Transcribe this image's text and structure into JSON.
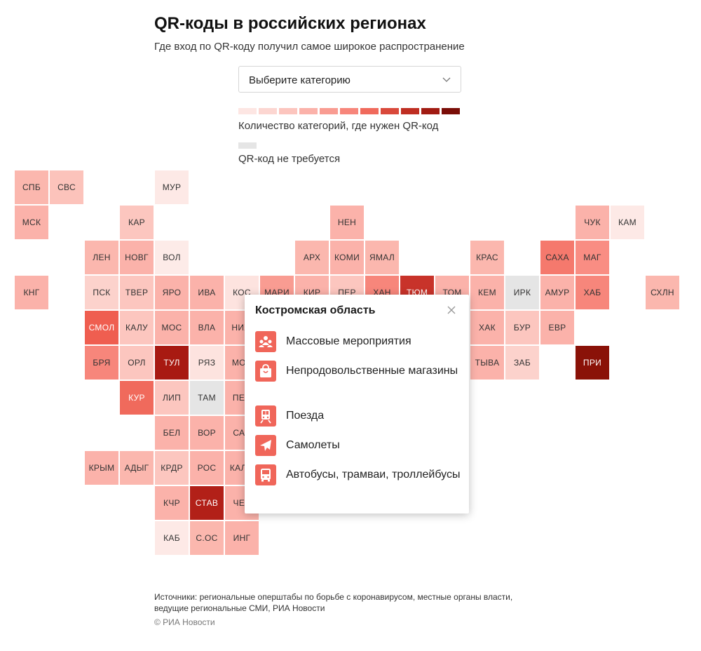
{
  "header": {
    "title": "QR-коды в российских регионах",
    "subtitle": "Где вход по QR-коду получил самое широкое распространение"
  },
  "category_select": {
    "label": "Выберите категорию",
    "icon": "chevron-down-icon"
  },
  "legend": {
    "scale_colors": [
      "#fde6e3",
      "#fcd6d1",
      "#fcc5be",
      "#fbb2aa",
      "#f99c92",
      "#f7867b",
      "#f06a5c",
      "#d9493b",
      "#bf2e22",
      "#a11b12",
      "#7a0d07"
    ],
    "scale_label": "Количество категорий, где нужен QR-код",
    "none_color": "#e5e5e5",
    "none_label": "QR-код не требуется"
  },
  "regions": [
    {
      "code": "СПБ",
      "col": 0,
      "row": 0,
      "color": "#fbb7ae"
    },
    {
      "code": "СВС",
      "col": 1,
      "row": 0,
      "color": "#fcc3bb"
    },
    {
      "code": "МУР",
      "col": 4,
      "row": 0,
      "color": "#fde9e6"
    },
    {
      "code": "МСК",
      "col": 0,
      "row": 1,
      "color": "#fbb2aa"
    },
    {
      "code": "КАР",
      "col": 3,
      "row": 1,
      "color": "#fcc6bf"
    },
    {
      "code": "НЕН",
      "col": 9,
      "row": 1,
      "color": "#fbb2aa"
    },
    {
      "code": "ЧУК",
      "col": 16,
      "row": 1,
      "color": "#fbb2aa"
    },
    {
      "code": "КАМ",
      "col": 17,
      "row": 1,
      "color": "#fde9e6"
    },
    {
      "code": "ЛЕН",
      "col": 2,
      "row": 2,
      "color": "#fbb7ae"
    },
    {
      "code": "НОВГ",
      "col": 3,
      "row": 2,
      "color": "#fbb2aa"
    },
    {
      "code": "ВОЛ",
      "col": 4,
      "row": 2,
      "color": "#fdebe8"
    },
    {
      "code": "АРХ",
      "col": 8,
      "row": 2,
      "color": "#fbb7ae"
    },
    {
      "code": "КОМИ",
      "col": 9,
      "row": 2,
      "color": "#fbb2aa"
    },
    {
      "code": "ЯМАЛ",
      "col": 10,
      "row": 2,
      "color": "#fbb7ae"
    },
    {
      "code": "КРАС",
      "col": 13,
      "row": 2,
      "color": "#fbb7ae"
    },
    {
      "code": "САХА",
      "col": 15,
      "row": 2,
      "color": "#f5796d"
    },
    {
      "code": "МАГ",
      "col": 16,
      "row": 2,
      "color": "#f98d83"
    },
    {
      "code": "КНГ",
      "col": 0,
      "row": 3,
      "color": "#fbb2aa"
    },
    {
      "code": "ПСК",
      "col": 2,
      "row": 3,
      "color": "#fcd2cc"
    },
    {
      "code": "ТВЕР",
      "col": 3,
      "row": 3,
      "color": "#fcc6bf"
    },
    {
      "code": "ЯРО",
      "col": 4,
      "row": 3,
      "color": "#fbb2aa"
    },
    {
      "code": "ИВА",
      "col": 5,
      "row": 3,
      "color": "#fbb2aa"
    },
    {
      "code": "КОС",
      "col": 6,
      "row": 3,
      "color": "#fde3df"
    },
    {
      "code": "МАРИ",
      "col": 7,
      "row": 3,
      "color": "#f99c92"
    },
    {
      "code": "КИР",
      "col": 8,
      "row": 3,
      "color": "#fbb2aa"
    },
    {
      "code": "ПЕР",
      "col": 9,
      "row": 3,
      "color": "#fcc6bf"
    },
    {
      "code": "ХАН",
      "col": 10,
      "row": 3,
      "color": "#f7867b"
    },
    {
      "code": "ТЮМ",
      "col": 11,
      "row": 3,
      "color": "#c8332a"
    },
    {
      "code": "ТОМ",
      "col": 12,
      "row": 3,
      "color": "#fbb2aa"
    },
    {
      "code": "КЕМ",
      "col": 13,
      "row": 3,
      "color": "#fbb2aa"
    },
    {
      "code": "ИРК",
      "col": 14,
      "row": 3,
      "color": "#e5e5e5"
    },
    {
      "code": "АМУР",
      "col": 15,
      "row": 3,
      "color": "#fbb2aa"
    },
    {
      "code": "ХАБ",
      "col": 16,
      "row": 3,
      "color": "#f7867b"
    },
    {
      "code": "СХЛН",
      "col": 18,
      "row": 3,
      "color": "#fbb7ae"
    },
    {
      "code": "СМОЛ",
      "col": 2,
      "row": 4,
      "color": "#ef5e50"
    },
    {
      "code": "КАЛУ",
      "col": 3,
      "row": 4,
      "color": "#fcc6bf"
    },
    {
      "code": "МОС",
      "col": 4,
      "row": 4,
      "color": "#fbb2aa"
    },
    {
      "code": "ВЛА",
      "col": 5,
      "row": 4,
      "color": "#fbb2aa"
    },
    {
      "code": "НИЖ",
      "col": 6,
      "row": 4,
      "color": "#fbb2aa"
    },
    {
      "code": "ХАК",
      "col": 13,
      "row": 4,
      "color": "#fbb2aa"
    },
    {
      "code": "БУР",
      "col": 14,
      "row": 4,
      "color": "#fcc6bf"
    },
    {
      "code": "ЕВР",
      "col": 15,
      "row": 4,
      "color": "#fbb2aa"
    },
    {
      "code": "БРЯ",
      "col": 2,
      "row": 5,
      "color": "#f7867b"
    },
    {
      "code": "ОРЛ",
      "col": 3,
      "row": 5,
      "color": "#fcc6bf"
    },
    {
      "code": "ТУЛ",
      "col": 4,
      "row": 5,
      "color": "#a81a12"
    },
    {
      "code": "РЯЗ",
      "col": 5,
      "row": 5,
      "color": "#fde3df"
    },
    {
      "code": "МОР",
      "col": 6,
      "row": 5,
      "color": "#fbb2aa"
    },
    {
      "code": "ТЫВА",
      "col": 13,
      "row": 5,
      "color": "#fbb2aa"
    },
    {
      "code": "ЗАБ",
      "col": 14,
      "row": 5,
      "color": "#fcd2cc"
    },
    {
      "code": "ПРИ",
      "col": 16,
      "row": 5,
      "color": "#8a1208"
    },
    {
      "code": "КУР",
      "col": 3,
      "row": 6,
      "color": "#f06a5c"
    },
    {
      "code": "ЛИП",
      "col": 4,
      "row": 6,
      "color": "#fcc6bf"
    },
    {
      "code": "ТАМ",
      "col": 5,
      "row": 6,
      "color": "#e5e5e5"
    },
    {
      "code": "ПЕН",
      "col": 6,
      "row": 6,
      "color": "#fbb2aa"
    },
    {
      "code": "БЕЛ",
      "col": 4,
      "row": 7,
      "color": "#fbb2aa"
    },
    {
      "code": "ВОР",
      "col": 5,
      "row": 7,
      "color": "#fbb2aa"
    },
    {
      "code": "САР",
      "col": 6,
      "row": 7,
      "color": "#fbb2aa"
    },
    {
      "code": "КРЫМ",
      "col": 2,
      "row": 8,
      "color": "#fbb2aa"
    },
    {
      "code": "АДЫГ",
      "col": 3,
      "row": 8,
      "color": "#fbb7ae"
    },
    {
      "code": "КРДР",
      "col": 4,
      "row": 8,
      "color": "#fcc6bf"
    },
    {
      "code": "РОС",
      "col": 5,
      "row": 8,
      "color": "#fbb2aa"
    },
    {
      "code": "КАЛМ",
      "col": 6,
      "row": 8,
      "color": "#fbb2aa"
    },
    {
      "code": "КЧР",
      "col": 4,
      "row": 9,
      "color": "#fbb2aa"
    },
    {
      "code": "СТАВ",
      "col": 5,
      "row": 9,
      "color": "#b22018"
    },
    {
      "code": "ЧЕЧ",
      "col": 6,
      "row": 9,
      "color": "#fbb2aa"
    },
    {
      "code": "КАБ",
      "col": 4,
      "row": 10,
      "color": "#fde9e6"
    },
    {
      "code": "С.ОС",
      "col": 5,
      "row": 10,
      "color": "#fbb7ae"
    },
    {
      "code": "ИНГ",
      "col": 6,
      "row": 10,
      "color": "#fbb2aa"
    }
  ],
  "popup": {
    "title": "Костромская область",
    "close_icon": "close-icon",
    "items": [
      {
        "label": "Массовые мероприятия",
        "icon": "people-icon"
      },
      {
        "label": "Непродовольственные магазины",
        "icon": "shopping-bag-icon"
      },
      {
        "label": "Поезда",
        "icon": "train-icon"
      },
      {
        "label": "Самолеты",
        "icon": "airplane-icon"
      },
      {
        "label": "Автобусы, трамваи, троллейбусы",
        "icon": "bus-icon"
      }
    ]
  },
  "footer": {
    "sources": "Источники: региональные оперштабы по борьбе с коронавирусом, местные органы власти, ведущие региональные СМИ, РИА Новости",
    "copyright": "© РИА Новости"
  }
}
